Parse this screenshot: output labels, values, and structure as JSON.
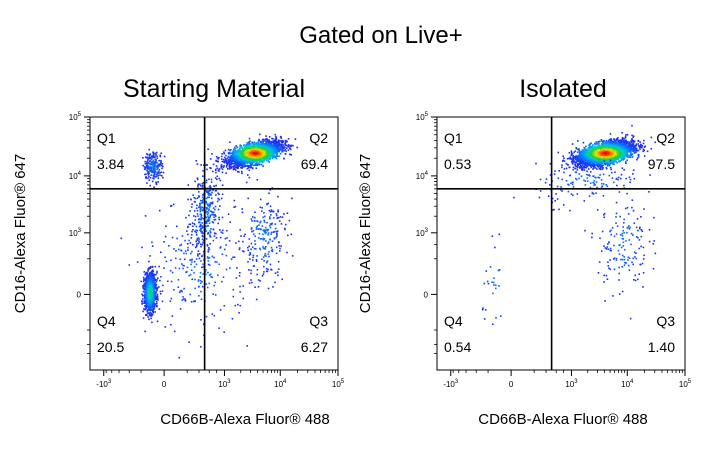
{
  "figure_title": "Gated on Live+",
  "chart_data": [
    {
      "type": "scatter",
      "title": "Starting Material",
      "xlabel": "CD66B-Alexa Fluor® 488",
      "ylabel": "CD16-Alexa Fluor® 647",
      "scale": "biexponential",
      "x_ticks": [
        {
          "label": "-10",
          "exp": "3"
        },
        {
          "label": "0",
          "exp": ""
        },
        {
          "label": "10",
          "exp": "3"
        },
        {
          "label": "10",
          "exp": "4"
        },
        {
          "label": "10",
          "exp": "5"
        }
      ],
      "y_ticks": [
        {
          "label": "0",
          "exp": ""
        },
        {
          "label": "10",
          "exp": "3"
        },
        {
          "label": "10",
          "exp": "4"
        },
        {
          "label": "10",
          "exp": "5"
        }
      ],
      "gate": {
        "x": 400,
        "y": 6000
      },
      "quadrants": [
        {
          "id": "Q1",
          "value": "3.84",
          "pos": "top-left"
        },
        {
          "id": "Q2",
          "value": "69.4",
          "pos": "top-right"
        },
        {
          "id": "Q3",
          "value": "6.27",
          "pos": "bottom-right"
        },
        {
          "id": "Q4",
          "value": "20.5",
          "pos": "bottom-left"
        }
      ]
    },
    {
      "type": "scatter",
      "title": "Isolated",
      "xlabel": "CD66B-Alexa Fluor® 488",
      "ylabel": "CD16-Alexa Fluor® 647",
      "scale": "biexponential",
      "x_ticks": [
        {
          "label": "-10",
          "exp": "3"
        },
        {
          "label": "0",
          "exp": ""
        },
        {
          "label": "10",
          "exp": "3"
        },
        {
          "label": "10",
          "exp": "4"
        },
        {
          "label": "10",
          "exp": "5"
        }
      ],
      "y_ticks": [
        {
          "label": "0",
          "exp": ""
        },
        {
          "label": "10",
          "exp": "3"
        },
        {
          "label": "10",
          "exp": "4"
        },
        {
          "label": "10",
          "exp": "5"
        }
      ],
      "gate": {
        "x": 400,
        "y": 6000
      },
      "quadrants": [
        {
          "id": "Q1",
          "value": "0.53",
          "pos": "top-left"
        },
        {
          "id": "Q2",
          "value": "97.5",
          "pos": "top-right"
        },
        {
          "id": "Q3",
          "value": "1.40",
          "pos": "bottom-right"
        },
        {
          "id": "Q4",
          "value": "0.54",
          "pos": "bottom-left"
        }
      ]
    }
  ]
}
